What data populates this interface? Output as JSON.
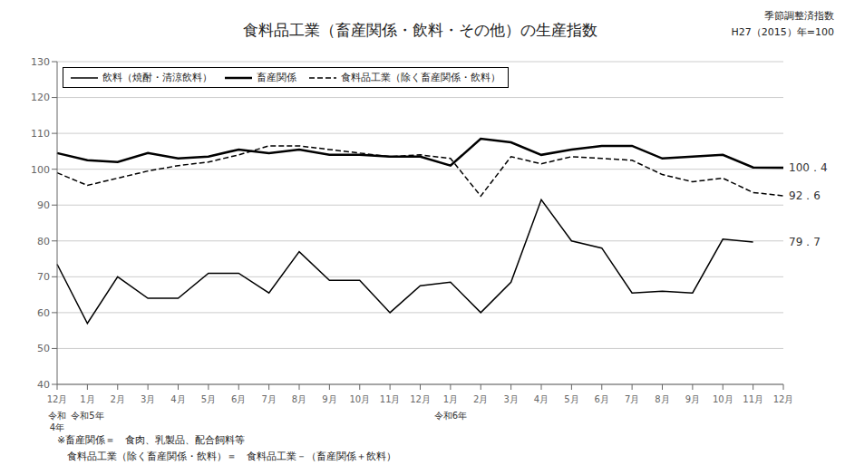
{
  "chart_data": {
    "type": "line",
    "title": "食料品工業（畜産関係・飲料・その他）の生産指数",
    "subtitle": [
      "季節調整済指数",
      "H27（2015）年=100"
    ],
    "categories": [
      "12月",
      "1月",
      "2月",
      "3月",
      "4月",
      "5月",
      "6月",
      "7月",
      "8月",
      "9月",
      "10月",
      "11月",
      "12月",
      "1月",
      "2月",
      "3月",
      "4月",
      "5月",
      "6月",
      "7月",
      "8月",
      "9月",
      "10月",
      "11月",
      "12月"
    ],
    "series": [
      {
        "name": "飲料（焼酎・清涼飲料）",
        "color": "#000000",
        "line_style": "solid",
        "values": [
          73.5,
          57.0,
          70.0,
          64.0,
          64.0,
          71.0,
          71.0,
          65.5,
          77.0,
          69.0,
          69.0,
          60.0,
          67.5,
          68.5,
          60.0,
          68.5,
          91.5,
          80.0,
          78.0,
          65.5,
          66.0,
          65.5,
          80.5,
          79.7,
          null
        ]
      },
      {
        "name": "畜産関係",
        "color": "#000000",
        "line_style": "solid",
        "values": [
          104.5,
          102.5,
          102.0,
          104.5,
          103.0,
          103.5,
          105.5,
          104.5,
          105.5,
          104.0,
          104.0,
          103.5,
          103.5,
          101.0,
          108.5,
          107.5,
          104.0,
          105.5,
          106.5,
          106.5,
          103.0,
          103.5,
          104.0,
          100.5,
          100.4
        ]
      },
      {
        "name": "食料品工業（除く畜産関係・飲料）",
        "color": "#000000",
        "line_style": "dashed",
        "values": [
          99.0,
          95.5,
          97.5,
          99.5,
          101.0,
          102.0,
          104.0,
          106.5,
          106.5,
          105.5,
          104.5,
          103.5,
          104.0,
          103.0,
          92.5,
          103.5,
          101.5,
          103.5,
          103.0,
          102.5,
          98.5,
          96.5,
          97.5,
          93.5,
          92.6
        ]
      }
    ],
    "annotations": [
      {
        "text": "100．4",
        "x": 24,
        "y": 100.4
      },
      {
        "text": "92．6",
        "x": 24,
        "y": 92.6
      },
      {
        "text": "79．7",
        "x": 24,
        "y": 79.7
      },
      {
        "text": "令和\n4年",
        "x": 0
      },
      {
        "text": "令和5年",
        "x": 1
      },
      {
        "text": "令和6年",
        "x": 13
      }
    ],
    "footnotes": [
      "※畜産関係＝　食肉、乳製品、配合飼料等",
      "　食料品工業（除く畜産関係・飲料）＝　食料品工業－（畜産関係＋飲料）"
    ],
    "ylim": [
      40,
      130
    ],
    "yticks": [
      40,
      50,
      60,
      70,
      80,
      90,
      100,
      110,
      120,
      130
    ],
    "grid": true,
    "legend": "upper left"
  }
}
